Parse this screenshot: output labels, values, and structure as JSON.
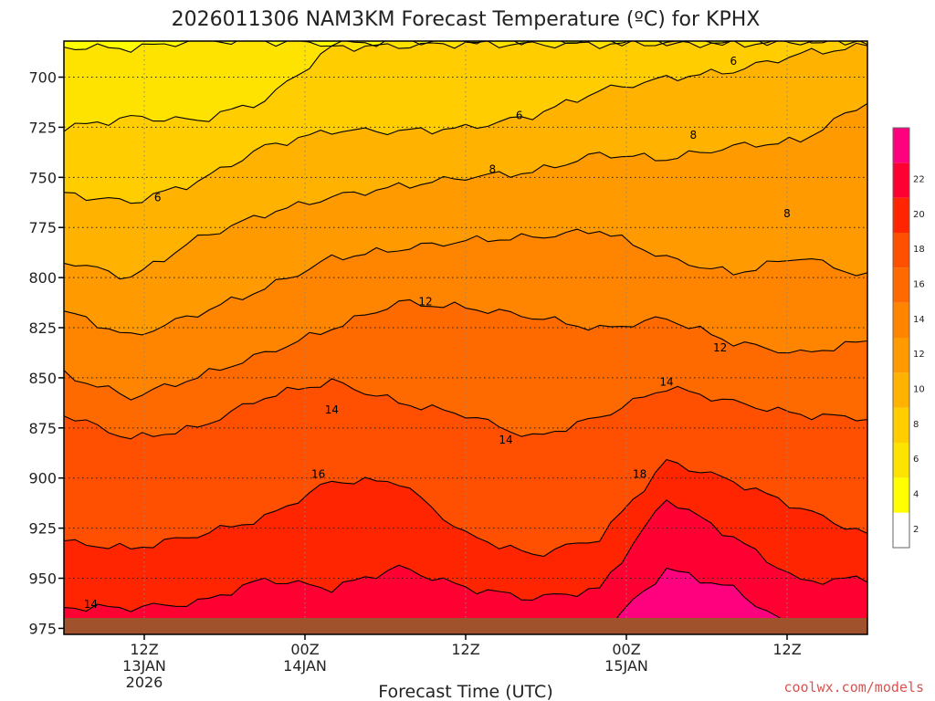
{
  "chart_data": {
    "type": "heatmap",
    "title": "2026011306 NAM3KM Forecast Temperature (ºC) for KPHX",
    "xlabel": "Forecast Time (UTC)",
    "ylabel": "",
    "credit": "coolwx.com/models",
    "y_axis": {
      "unit": "hPa",
      "range": [
        978,
        682
      ],
      "ticks": [
        700,
        725,
        750,
        775,
        800,
        825,
        850,
        875,
        900,
        925,
        950,
        975
      ]
    },
    "x_axis": {
      "unit": "hours since 2026-01-13 06Z",
      "range": [
        0,
        60
      ],
      "ticks": [
        {
          "hour": 6,
          "line1": "12Z",
          "line2": "13JAN",
          "line3": "2026"
        },
        {
          "hour": 18,
          "line1": "00Z",
          "line2": "14JAN",
          "line3": ""
        },
        {
          "hour": 30,
          "line1": "12Z",
          "line2": "",
          "line3": ""
        },
        {
          "hour": 42,
          "line1": "00Z",
          "line2": "15JAN",
          "line3": ""
        },
        {
          "hour": 54,
          "line1": "12Z",
          "line2": "",
          "line3": ""
        }
      ]
    },
    "colorbar": {
      "levels": [
        2,
        4,
        6,
        8,
        10,
        12,
        14,
        16,
        18,
        20,
        22
      ],
      "colors": [
        "#ffffff",
        "#ffff00",
        "#ffe300",
        "#ffcd00",
        "#ffb200",
        "#ff9a00",
        "#ff8400",
        "#ff6a00",
        "#ff4f00",
        "#ff2500",
        "#ff0033",
        "#ff007f"
      ]
    },
    "contour_bands": [
      {
        "min": 2,
        "max": 4,
        "pressure": [
          685,
          686,
          682,
          682,
          683,
          682,
          682,
          682,
          682,
          682,
          682,
          682,
          682
        ]
      },
      {
        "min": 4,
        "max": 6,
        "pressure": [
          725,
          720,
          722,
          712,
          685,
          684,
          683,
          684,
          684,
          683,
          683,
          682,
          682
        ]
      },
      {
        "min": 6,
        "max": 8,
        "pressure": [
          758,
          762,
          752,
          735,
          727,
          727,
          725,
          719,
          707,
          701,
          697,
          688,
          684
        ]
      },
      {
        "min": 8,
        "max": 10,
        "pressure": [
          792,
          800,
          780,
          768,
          760,
          755,
          750,
          747,
          738,
          741,
          735,
          732,
          712
        ]
      },
      {
        "min": 10,
        "max": 12,
        "pressure": [
          817,
          830,
          818,
          805,
          790,
          786,
          782,
          780,
          776,
          790,
          798,
          790,
          800
        ]
      },
      {
        "min": 12,
        "max": 14,
        "pressure": [
          848,
          860,
          850,
          838,
          825,
          812,
          815,
          820,
          826,
          820,
          832,
          838,
          832
        ]
      },
      {
        "min": 14,
        "max": 16,
        "pressure": [
          868,
          880,
          875,
          860,
          852,
          862,
          868,
          880,
          870,
          855,
          862,
          868,
          870
        ]
      },
      {
        "min": 16,
        "max": 18,
        "pressure": [
          932,
          935,
          928,
          920,
          902,
          902,
          928,
          938,
          930,
          892,
          902,
          915,
          928
        ]
      },
      {
        "min": 18,
        "max": 20,
        "pressure": [
          965,
          965,
          962,
          950,
          955,
          945,
          955,
          960,
          955,
          910,
          930,
          952,
          950
        ]
      },
      {
        "min": 20,
        "max": 22,
        "pressure": [
          978,
          978,
          978,
          978,
          975,
          975,
          978,
          978,
          978,
          945,
          955,
          978,
          978
        ]
      }
    ],
    "contour_labels": [
      {
        "text": "6",
        "hour": 7,
        "pressure": 760
      },
      {
        "text": "6",
        "hour": 34,
        "pressure": 719
      },
      {
        "text": "6",
        "hour": 50,
        "pressure": 692
      },
      {
        "text": "8",
        "hour": 32,
        "pressure": 746
      },
      {
        "text": "8",
        "hour": 47,
        "pressure": 729
      },
      {
        "text": "8",
        "hour": 54,
        "pressure": 768
      },
      {
        "text": "12",
        "hour": 27,
        "pressure": 812
      },
      {
        "text": "12",
        "hour": 49,
        "pressure": 835
      },
      {
        "text": "14",
        "hour": 20,
        "pressure": 866
      },
      {
        "text": "14",
        "hour": 33,
        "pressure": 881
      },
      {
        "text": "14",
        "hour": 45,
        "pressure": 852
      },
      {
        "text": "16",
        "hour": 19,
        "pressure": 898
      },
      {
        "text": "18",
        "hour": 43,
        "pressure": 898
      },
      {
        "text": "14",
        "hour": 2,
        "pressure": 963
      }
    ]
  }
}
